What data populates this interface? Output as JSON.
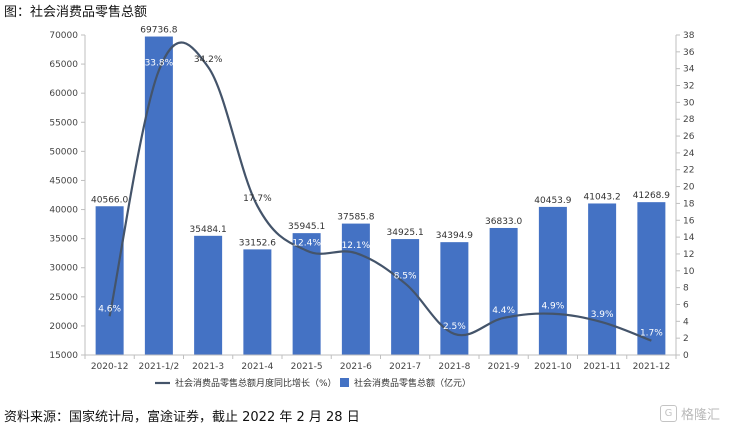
{
  "figure": {
    "title": "图：社会消费品零售总额",
    "source": "资料来源：国家统计局，富途证券，截止 2022 年 2 月 28 日",
    "watermark": "格隆汇"
  },
  "chart_data": {
    "type": "bar",
    "categories": [
      "2020-12",
      "2021-1/2",
      "2021-3",
      "2021-4",
      "2021-5",
      "2021-6",
      "2021-7",
      "2021-8",
      "2021-9",
      "2021-10",
      "2021-11",
      "2021-12"
    ],
    "series": [
      {
        "name": "社会消费品零售总额（亿元）",
        "type": "bar",
        "axis": "left",
        "color": "#4472C4",
        "values": [
          40566.0,
          69736.8,
          35484.1,
          33152.6,
          35945.1,
          37585.8,
          34925.1,
          34394.9,
          36833.0,
          40453.9,
          41043.2,
          41268.9
        ],
        "labels": [
          "40566.0",
          "69736.8",
          "35484.1",
          "33152.6",
          "35945.1",
          "37585.8",
          "34925.1",
          "34394.9",
          "36833.0",
          "40453.9",
          "41043.2",
          "41268.9"
        ]
      },
      {
        "name": "社会消费品零售总额月度同比增长（%）",
        "type": "line",
        "axis": "right",
        "color": "#44546A",
        "smooth": true,
        "values": [
          4.6,
          33.8,
          34.2,
          17.7,
          12.4,
          12.1,
          8.5,
          2.5,
          4.4,
          4.9,
          3.9,
          1.7
        ],
        "labels": [
          "4.6%",
          "33.8%",
          "34.2%",
          "17.7%",
          "12.4%",
          "12.1%",
          "8.5%",
          "2.5%",
          "4.4%",
          "4.9%",
          "3.9%",
          "1.7%"
        ]
      }
    ],
    "y_left": {
      "min": 15000,
      "max": 70000,
      "step": 5000
    },
    "y_right": {
      "min": 0,
      "max": 38,
      "step": 2
    },
    "grid": false,
    "legend": "bottom-center"
  }
}
